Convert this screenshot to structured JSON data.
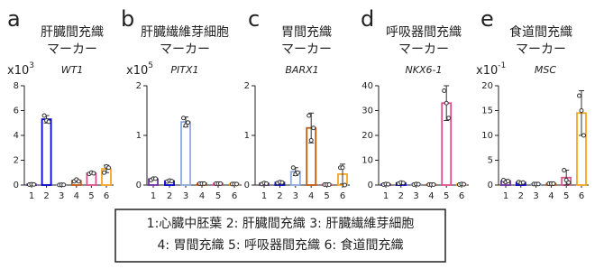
{
  "chart_data": [
    {
      "type": "bar",
      "panel": "a",
      "title": [
        "肝臓間充織",
        "マーカー"
      ],
      "scale_base": "x10",
      "scale_exp": "3",
      "gene": "WT1",
      "categories": [
        "1",
        "2",
        "3",
        "4",
        "5",
        "6"
      ],
      "values": [
        0.05,
        5.3,
        0.02,
        0.35,
        0.95,
        1.3
      ],
      "errors": [
        0.03,
        0.3,
        0.02,
        0.1,
        0.08,
        0.3
      ],
      "points": [
        [
          0.04,
          0.06,
          0.05
        ],
        [
          5.6,
          5.2,
          5.1
        ],
        [
          0.01,
          0.03,
          0.02
        ],
        [
          0.3,
          0.45,
          0.3
        ],
        [
          0.9,
          1.0,
          0.95
        ],
        [
          1.0,
          1.5,
          1.4
        ]
      ],
      "colors": [
        "#7030a0",
        "#0000cc",
        "#8faadc",
        "#c55a11",
        "#e0508c",
        "#f5a623"
      ],
      "ylim": [
        0,
        8
      ],
      "yticks": [
        0,
        2,
        4,
        6,
        8
      ]
    },
    {
      "type": "bar",
      "panel": "b",
      "title": [
        "肝臓繊維芽細胞",
        "マーカー"
      ],
      "scale_base": "x10",
      "scale_exp": "5",
      "gene": "PITX1",
      "categories": [
        "1",
        "2",
        "3",
        "4",
        "5",
        "6"
      ],
      "values": [
        0.12,
        0.08,
        1.27,
        0.03,
        0.03,
        0.02
      ],
      "errors": [
        0.02,
        0.02,
        0.1,
        0.01,
        0.01,
        0.01
      ],
      "points": [
        [
          0.1,
          0.13,
          0.13
        ],
        [
          0.07,
          0.09,
          0.08
        ],
        [
          1.35,
          1.2,
          1.26
        ],
        [
          0.03,
          0.03,
          0.03
        ],
        [
          0.03,
          0.03,
          0.03
        ],
        [
          0.02,
          0.02,
          0.02
        ]
      ],
      "colors": [
        "#7030a0",
        "#0000cc",
        "#8faadc",
        "#c55a11",
        "#e0508c",
        "#f5a623"
      ],
      "ylim": [
        0,
        2
      ],
      "yticks": [
        0,
        1,
        2
      ]
    },
    {
      "type": "bar",
      "panel": "c",
      "title": [
        "胃間充織",
        "マーカー"
      ],
      "scale_base": "",
      "scale_exp": "",
      "gene": "BARX1",
      "categories": [
        "1",
        "2",
        "3",
        "4",
        "5",
        "6"
      ],
      "values": [
        0.03,
        0.05,
        0.27,
        1.15,
        0.01,
        0.22
      ],
      "errors": [
        0.02,
        0.02,
        0.08,
        0.3,
        0.01,
        0.2
      ],
      "points": [
        [
          0.02,
          0.04,
          0.03
        ],
        [
          0.04,
          0.06,
          0.05
        ],
        [
          0.35,
          0.22,
          0.25
        ],
        [
          1.4,
          0.9,
          1.15
        ],
        [
          0.01,
          0.01,
          0.01
        ],
        [
          0.35,
          0.35,
          0.0
        ]
      ],
      "colors": [
        "#7030a0",
        "#0000cc",
        "#8faadc",
        "#c55a11",
        "#e0508c",
        "#f5a623"
      ],
      "ylim": [
        0,
        2
      ],
      "yticks": [
        0,
        1,
        2
      ]
    },
    {
      "type": "bar",
      "panel": "d",
      "title": [
        "呼吸器間充織",
        "マーカー"
      ],
      "scale_base": "",
      "scale_exp": "",
      "gene": "NKX6-1",
      "categories": [
        "1",
        "2",
        "3",
        "4",
        "5",
        "6"
      ],
      "values": [
        0.3,
        0.8,
        0.3,
        0.2,
        33,
        0.3
      ],
      "errors": [
        0.2,
        0.3,
        0.2,
        0.1,
        7,
        0.2
      ],
      "points": [
        [
          0.2,
          0.4,
          0.3
        ],
        [
          0.6,
          1.0,
          0.8
        ],
        [
          0.2,
          0.4,
          0.3
        ],
        [
          0.2,
          0.2,
          0.2
        ],
        [
          38,
          33,
          27
        ],
        [
          0.2,
          0.4,
          0.3
        ]
      ],
      "colors": [
        "#7030a0",
        "#0000cc",
        "#8faadc",
        "#c55a11",
        "#e0508c",
        "#f5a623"
      ],
      "ylim": [
        0,
        40
      ],
      "yticks": [
        0,
        10,
        20,
        30,
        40
      ]
    },
    {
      "type": "bar",
      "panel": "e",
      "title": [
        "食道間充織",
        "マーカー"
      ],
      "scale_base": "x10",
      "scale_exp": "-1",
      "gene": "MSC",
      "categories": [
        "1",
        "2",
        "3",
        "4",
        "5",
        "6"
      ],
      "values": [
        0.8,
        0.5,
        0.2,
        0.3,
        1.5,
        14.5
      ],
      "errors": [
        0.3,
        0.2,
        0.1,
        0.1,
        1.5,
        4.5
      ],
      "points": [
        [
          1.0,
          0.6,
          0.8
        ],
        [
          0.6,
          0.4,
          0.5
        ],
        [
          0.2,
          0.2,
          0.2
        ],
        [
          0.3,
          0.3,
          0.3
        ],
        [
          3.0,
          1.0,
          0.5
        ],
        [
          18,
          15,
          10
        ]
      ],
      "colors": [
        "#7030a0",
        "#0000cc",
        "#8faadc",
        "#c55a11",
        "#e0508c",
        "#f5a623"
      ],
      "ylim": [
        0,
        20
      ],
      "yticks": [
        0,
        5,
        10,
        15,
        20
      ]
    }
  ],
  "legend": [
    "1:心臓中胚葉 2: 肝臓間充織 3: 肝臓繊維芽細胞",
    "4: 胃間充織 5: 呼吸器間充織 6: 食道間充織"
  ]
}
